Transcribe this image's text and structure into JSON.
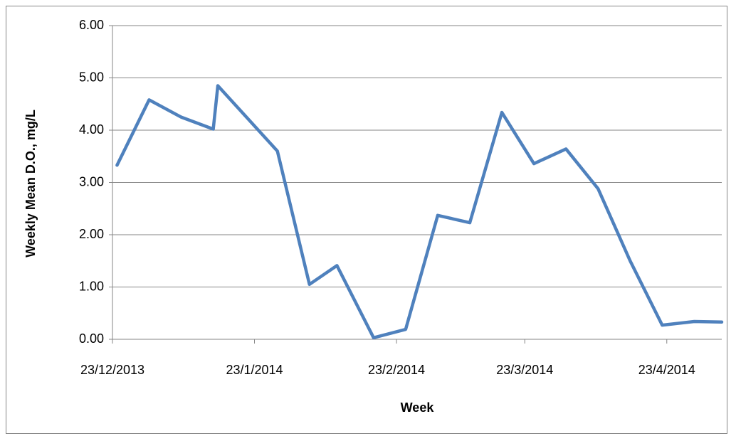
{
  "chart_data": {
    "type": "line",
    "x_label": "Week",
    "y_label": "Weekly Mean D.O., mg/L",
    "x": [
      "2013-12-24",
      "2013-12-31",
      "2014-01-07",
      "2014-01-14",
      "2014-01-15",
      "2014-01-28",
      "2014-02-04",
      "2014-02-10",
      "2014-02-18",
      "2014-02-25",
      "2014-03-04",
      "2014-03-11",
      "2014-03-18",
      "2014-03-25",
      "2014-04-01",
      "2014-04-08",
      "2014-04-15",
      "2014-04-22",
      "2014-04-29",
      "2014-05-05"
    ],
    "series": [
      {
        "color": "#4f81bd",
        "values": [
          3.33,
          4.58,
          4.25,
          4.02,
          4.85,
          3.6,
          1.05,
          1.41,
          0.03,
          0.19,
          2.37,
          2.23,
          4.34,
          3.36,
          3.64,
          2.88,
          1.5,
          0.27,
          0.34,
          0.33
        ]
      }
    ],
    "xlim": [
      "2013-12-23",
      "2014-05-05"
    ],
    "xticks": [
      {
        "value": "2013-12-23",
        "label": "23/12/2013"
      },
      {
        "value": "2014-01-23",
        "label": "23/1/2014"
      },
      {
        "value": "2014-02-23",
        "label": "23/2/2014"
      },
      {
        "value": "2014-03-23",
        "label": "23/3/2014"
      },
      {
        "value": "2014-04-23",
        "label": "23/4/2014"
      }
    ],
    "ylim": [
      0,
      6
    ],
    "yticks": [
      {
        "value": 0,
        "label": "0.00"
      },
      {
        "value": 1,
        "label": "1.00"
      },
      {
        "value": 2,
        "label": "2.00"
      },
      {
        "value": 3,
        "label": "3.00"
      },
      {
        "value": 4,
        "label": "4.00"
      },
      {
        "value": 5,
        "label": "5.00"
      },
      {
        "value": 6,
        "label": "6.00"
      }
    ],
    "grid": true
  }
}
